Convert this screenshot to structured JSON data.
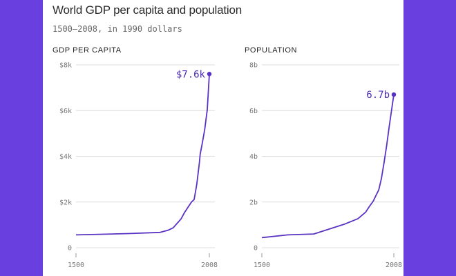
{
  "header": {
    "title": "World GDP per capita and population",
    "subtitle": "1500–2008, in 1990 dollars"
  },
  "colors": {
    "line": "#5a32c4",
    "grid": "#dddddd",
    "background": "#6a3fe0"
  },
  "chart_data": [
    {
      "type": "line",
      "title": "GDP PER CAPITA",
      "xlim": [
        1500,
        2008
      ],
      "ylim": [
        0,
        8000
      ],
      "x_ticks": [
        1500,
        2008
      ],
      "x_tick_labels": [
        "1500",
        "2008"
      ],
      "y_ticks": [
        0,
        2000,
        4000,
        6000,
        8000
      ],
      "y_tick_labels": [
        "0",
        "$2k",
        "$4k",
        "$6k",
        "$8k"
      ],
      "grid": true,
      "end_label": "$7.6k",
      "series": [
        {
          "x": [
            1500,
            1600,
            1700,
            1820,
            1850,
            1870,
            1900,
            1913,
            1929,
            1940,
            1950,
            1960,
            1970,
            1973,
            1980,
            1990,
            2000,
            2008
          ],
          "y": [
            560,
            590,
            620,
            670,
            760,
            870,
            1260,
            1530,
            1810,
            2000,
            2110,
            2770,
            3720,
            4080,
            4510,
            5150,
            6040,
            7600
          ]
        }
      ]
    },
    {
      "type": "line",
      "title": "POPULATION",
      "xlim": [
        1500,
        2008
      ],
      "ylim": [
        0,
        8
      ],
      "x_ticks": [
        1500,
        2008
      ],
      "x_tick_labels": [
        "1500",
        "2008"
      ],
      "y_ticks": [
        0,
        2,
        4,
        6,
        8
      ],
      "y_tick_labels": [
        "0",
        "2b",
        "4b",
        "6b",
        "8b"
      ],
      "grid": true,
      "end_label": "6.7b",
      "series": [
        {
          "x": [
            1500,
            1600,
            1700,
            1820,
            1870,
            1900,
            1913,
            1929,
            1940,
            1950,
            1960,
            1970,
            1980,
            1990,
            2000,
            2008
          ],
          "y": [
            0.44,
            0.56,
            0.6,
            1.04,
            1.27,
            1.56,
            1.79,
            2.04,
            2.3,
            2.53,
            3.02,
            3.69,
            4.44,
            5.27,
            6.07,
            6.7
          ]
        }
      ]
    }
  ]
}
